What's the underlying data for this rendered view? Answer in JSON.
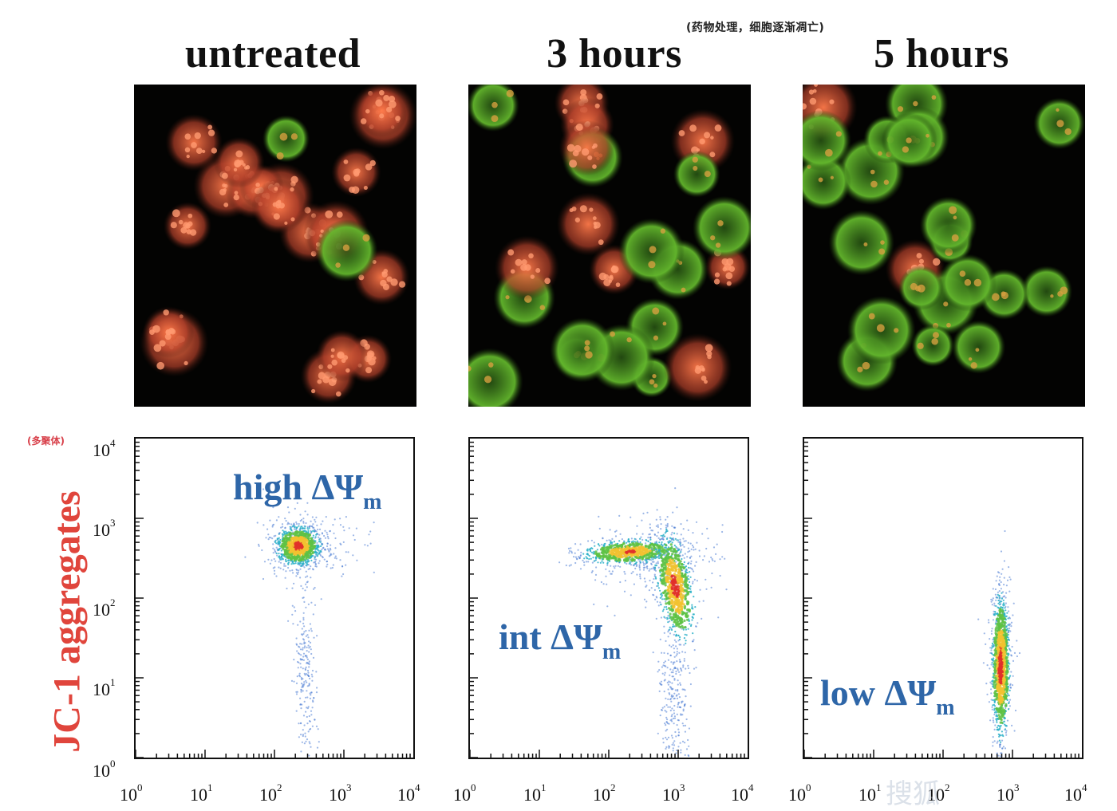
{
  "figure": {
    "note_top": "(药物处理，细胞逐渐凋亡)",
    "note_aggregates": "(多聚体)",
    "y_axis_label": "JC-1 aggregates",
    "panels": [
      {
        "title": "untreated",
        "gate_label": "high ΔΨ",
        "gate_sub": "m"
      },
      {
        "title": "3 hours",
        "gate_label": "int ΔΨ",
        "gate_sub": "m"
      },
      {
        "title": "5 hours",
        "gate_label": "low ΔΨ",
        "gate_sub": "m"
      }
    ],
    "tick_base": "10",
    "tick_exponents": [
      "0",
      "1",
      "2",
      "3",
      "4"
    ]
  },
  "chart_data": [
    {
      "type": "scatter",
      "title": "untreated",
      "xscale": "log",
      "yscale": "log",
      "xlim": [
        1,
        10000
      ],
      "ylim": [
        1,
        10000
      ],
      "populations": [
        {
          "name": "high ΔΨm",
          "x_center": 220,
          "y_center": 450,
          "density": "high"
        },
        {
          "name": "tail",
          "x_center": 300,
          "y_center": 15,
          "density": "low"
        }
      ]
    },
    {
      "type": "scatter",
      "title": "3 hours",
      "xscale": "log",
      "yscale": "log",
      "xlim": [
        1,
        10000
      ],
      "ylim": [
        1,
        10000
      ],
      "populations": [
        {
          "name": "upper arm",
          "x_center": 150,
          "y_center": 400,
          "density": "high"
        },
        {
          "name": "int ΔΨm",
          "x_center": 900,
          "y_center": 150,
          "density": "high"
        },
        {
          "name": "tail",
          "x_center": 800,
          "y_center": 8,
          "density": "low"
        }
      ]
    },
    {
      "type": "scatter",
      "title": "5 hours",
      "xscale": "log",
      "yscale": "log",
      "xlim": [
        1,
        10000
      ],
      "ylim": [
        1,
        10000
      ],
      "populations": [
        {
          "name": "low ΔΨm",
          "x_center": 650,
          "y_center": 15,
          "density": "high"
        }
      ]
    }
  ],
  "colors": {
    "title": "#111111",
    "ylabel": "#e0453c",
    "gate": "#2e66a8",
    "note_red": "#d8404a"
  },
  "watermark": "搜狐"
}
